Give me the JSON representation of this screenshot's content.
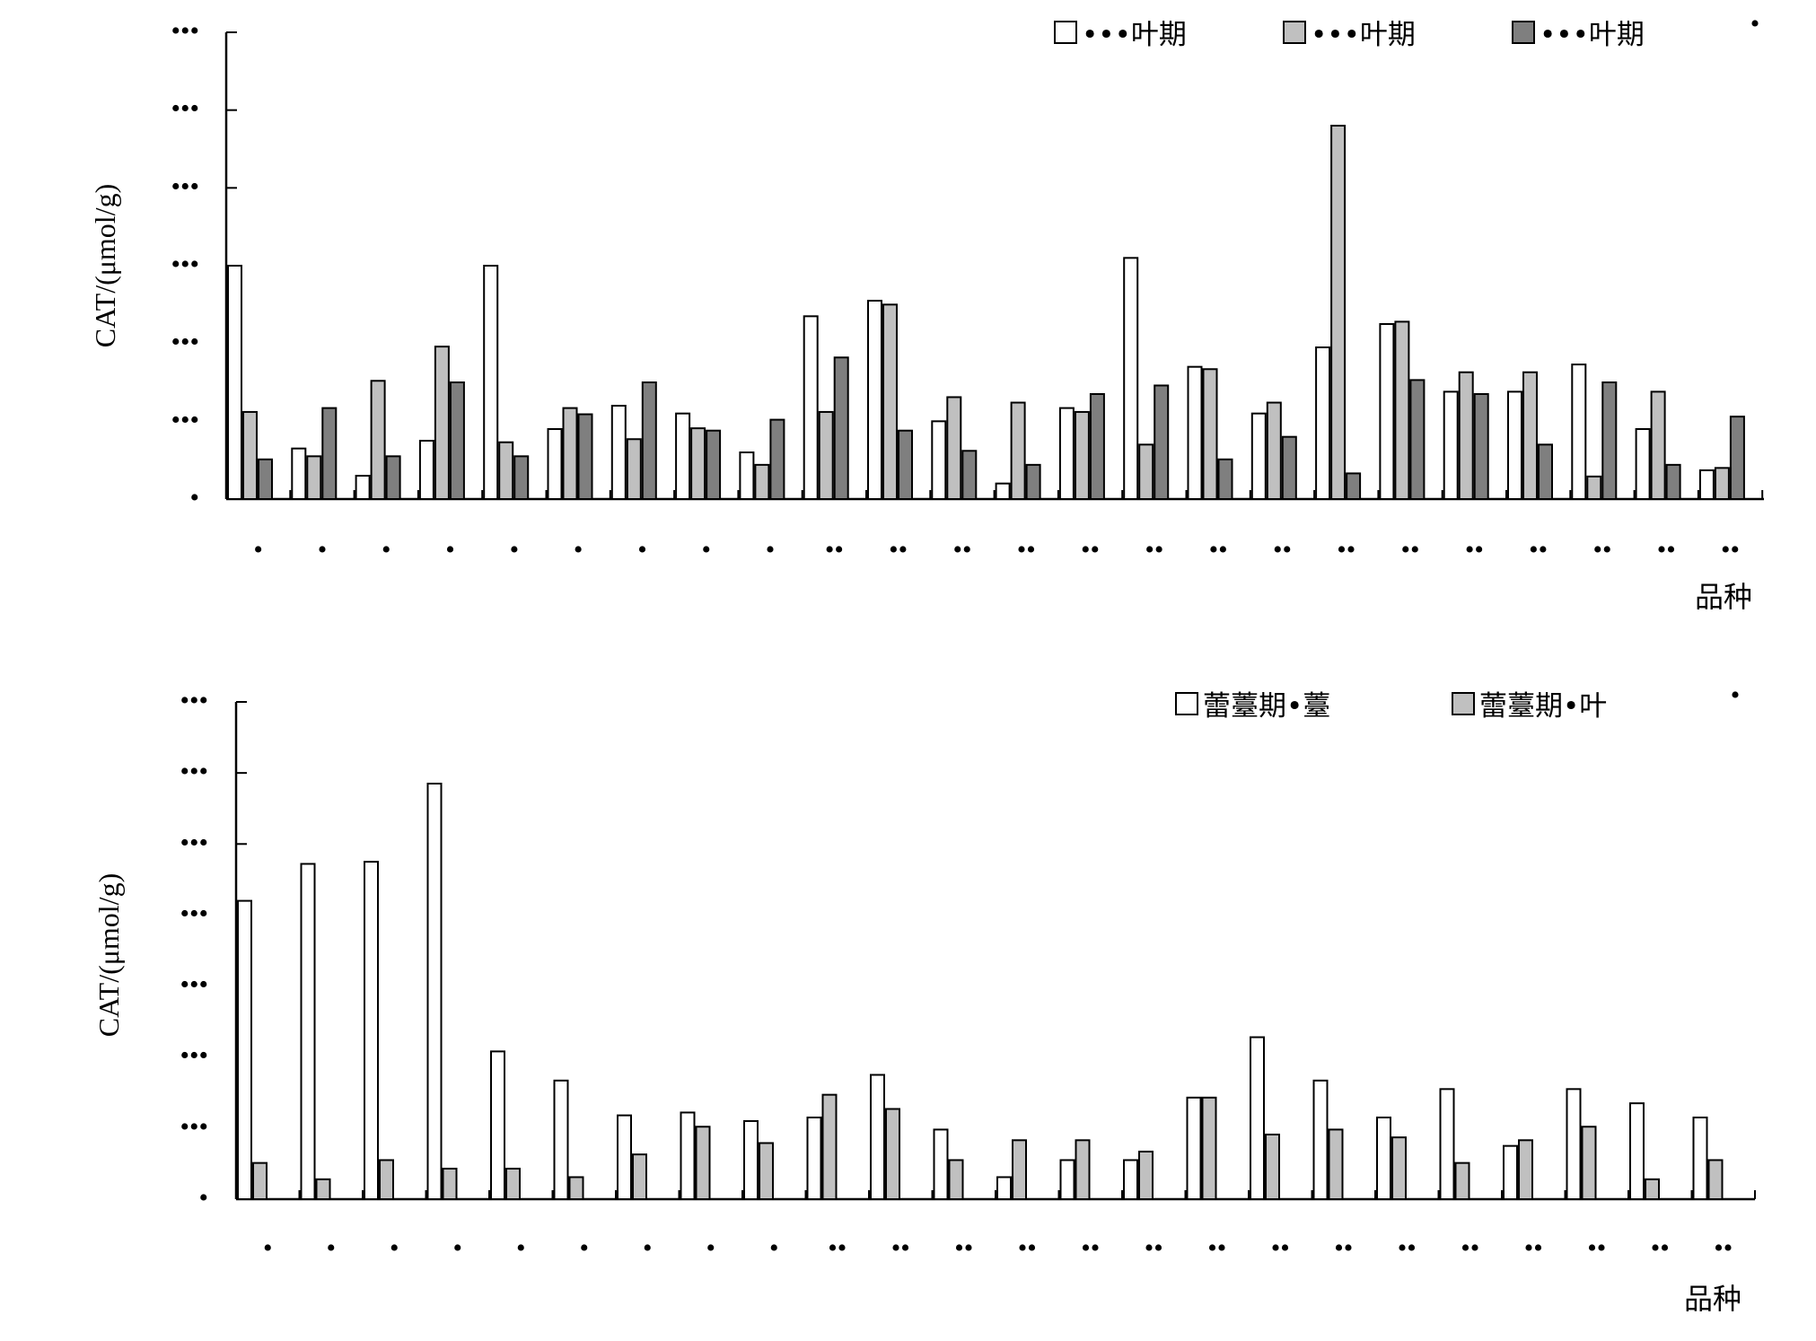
{
  "chart_data": [
    {
      "type": "bar",
      "ylabel": "CAT/(μmol/g)",
      "xlabel": "品种",
      "corner_mark": "•",
      "ylim": [
        0,
        6
      ],
      "y_ticks": [
        0,
        1,
        2,
        3,
        4,
        5,
        6
      ],
      "y_tick_labels": [
        "•",
        "•••",
        "•••",
        "•••",
        "•••",
        "•••",
        "•••"
      ],
      "categories": [
        "•",
        "•",
        "•",
        "•",
        "•",
        "•",
        "•",
        "•",
        "•",
        "••",
        "••",
        "••",
        "••",
        "••",
        "••",
        "••",
        "••",
        "••",
        "••",
        "••",
        "••",
        "••",
        "••",
        "••"
      ],
      "series": [
        {
          "name": "•••叶期",
          "color": "#ffffff",
          "values": [
            3.0,
            0.65,
            0.3,
            0.75,
            3.0,
            0.9,
            1.2,
            1.1,
            0.6,
            2.35,
            2.55,
            1.0,
            0.2,
            1.17,
            3.1,
            1.7,
            1.1,
            1.95,
            2.25,
            1.38,
            1.38,
            1.73,
            0.9,
            0.37
          ]
        },
        {
          "name": "•••叶期",
          "color": "#c0c0c0",
          "values": [
            1.12,
            0.55,
            1.52,
            1.96,
            0.73,
            1.17,
            0.77,
            0.91,
            0.44,
            1.12,
            2.5,
            1.31,
            1.24,
            1.12,
            0.7,
            1.67,
            1.24,
            4.8,
            2.28,
            1.63,
            1.63,
            0.29,
            1.38,
            0.4
          ]
        },
        {
          "name": "•••叶期",
          "color": "#7f7f7f",
          "values": [
            0.51,
            1.17,
            0.55,
            1.5,
            0.55,
            1.09,
            1.5,
            0.88,
            1.02,
            1.82,
            0.88,
            0.62,
            0.44,
            1.35,
            1.46,
            0.51,
            0.8,
            0.33,
            1.53,
            1.35,
            0.7,
            1.5,
            0.44,
            1.06
          ]
        }
      ]
    },
    {
      "type": "bar",
      "ylabel": "CAT/(μmol/g)",
      "xlabel": "品种",
      "corner_mark": "•",
      "ylim": [
        0,
        7
      ],
      "y_ticks": [
        0,
        1,
        2,
        3,
        4,
        5,
        6,
        7
      ],
      "y_tick_labels": [
        "•",
        "•••",
        "•••",
        "•••",
        "•••",
        "•••",
        "•••",
        "•••"
      ],
      "categories": [
        "•",
        "•",
        "•",
        "•",
        "•",
        "•",
        "•",
        "•",
        "•",
        "••",
        "••",
        "••",
        "••",
        "••",
        "••",
        "••",
        "••",
        "••",
        "••",
        "••",
        "••",
        "••",
        "••",
        "••"
      ],
      "series": [
        {
          "name": "蕾薹期•薹",
          "color": "#ffffff",
          "values": [
            4.2,
            4.72,
            4.75,
            5.85,
            2.08,
            1.67,
            1.18,
            1.22,
            1.1,
            1.15,
            1.75,
            0.98,
            0.31,
            0.55,
            0.55,
            1.43,
            2.28,
            1.67,
            1.15,
            1.55,
            0.75,
            1.55,
            1.35,
            1.15
          ]
        },
        {
          "name": "蕾薹期•叶",
          "color": "#c0c0c0",
          "values": [
            0.51,
            0.28,
            0.55,
            0.43,
            0.43,
            0.31,
            0.63,
            1.02,
            0.79,
            1.47,
            1.27,
            0.55,
            0.83,
            0.83,
            0.67,
            1.43,
            0.91,
            0.98,
            0.87,
            0.51,
            0.83,
            1.02,
            0.28,
            0.55
          ]
        }
      ]
    }
  ]
}
